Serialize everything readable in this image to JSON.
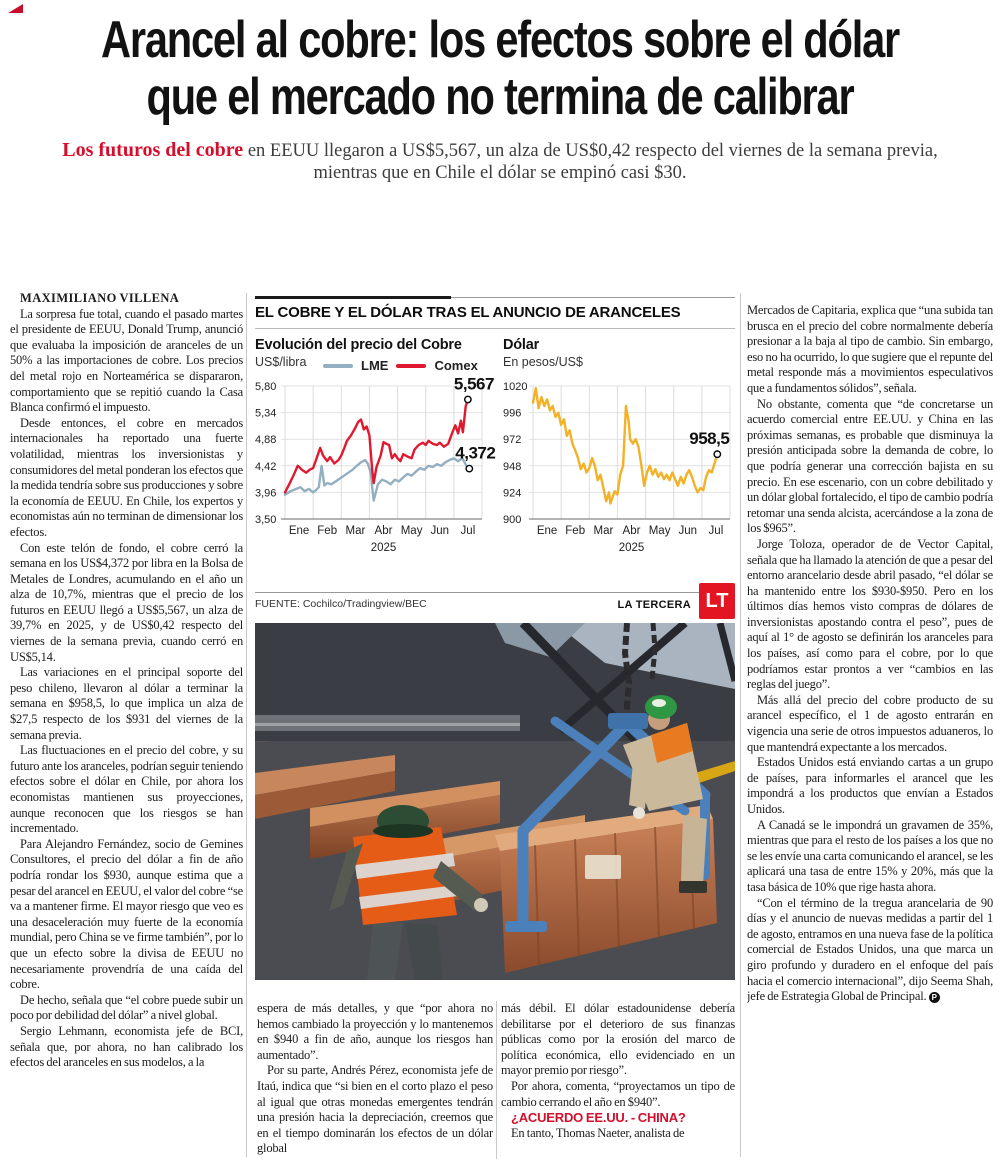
{
  "article": {
    "headline_line1": "Arancel al cobre: los efectos sobre el dólar",
    "headline_line2": "que el mercado no termina de calibrar",
    "deck_lead": "Los futuros del cobre",
    "deck_rest": " en EEUU llegaron a US$5,567, un alza de US$0,42 respecto del viernes de la semana previa, mientras que en Chile el dólar se empinó casi $30.",
    "byline": "MAXIMILIANO VILLENA",
    "left_column": {
      "paragraphs": [
        "La sorpresa fue total, cuando el pasado martes el presidente de EEUU, Donald Trump, anunció que evaluaba la imposición de aranceles de un 50% a las importaciones de cobre. Los precios del metal rojo en Norteamérica se dispararon, comportamiento que se repitió cuando la Casa Blanca confirmó el impuesto.",
        "Desde entonces, el cobre en mercados internacionales ha reportado una fuerte volatilidad, mientras los inversionistas y consumidores del metal ponderan los efectos que la medida tendría sobre sus producciones y sobre la economía de EEUU. En Chile, los expertos y economistas aún no terminan de dimensionar los efectos.",
        "Con este telón de fondo, el cobre cerró la semana en los US$4,372 por libra en la Bolsa de Metales de Londres, acumulando en el año un alza de 10,7%, mientras que el precio de los futuros en EEUU llegó a US$5,567, un alza de 39,7% en 2025, y de US$0,42 respecto del viernes de la semana previa, cuando cerró en US$5,14.",
        "Las variaciones en el principal soporte del peso chileno, llevaron al dólar a terminar la semana en $958,5, lo que implica un alza de $27,5 respecto de los $931 del viernes de la semana previa.",
        "Las fluctuaciones en el precio del cobre, y su futuro ante los aranceles, podrían seguir teniendo efectos sobre el dólar en Chile, por ahora los economistas mantienen sus proyecciones, aunque reconocen que los riesgos se han incrementado.",
        "Para Alejandro Fernández, socio de Gemines Consultores, el precio del dólar a fin de año podría rondar los $930, aunque estima que a pesar del arancel en EEUU, el valor del cobre “se va a mantener firme. El mayor riesgo que veo es una desaceleración muy fuerte de la economía mundial, pero China se ve firme también”, por lo que un efecto sobre la divisa de EEUU no necesariamente provendría de una caída del cobre.",
        "De hecho, señala que “el cobre puede subir un poco por debilidad del dólar” a nivel global.",
        "Sergio Lehmann, economista jefe de BCI, señala que, por ahora, no han calibrado los efectos del aranceles en sus modelos, a la"
      ]
    },
    "mid_column_1": {
      "paragraphs": [
        "espera de más detalles, y que “por ahora no hemos cambiado la proyección y lo mantenemos en $940 a fin de año, aunque los riesgos han aumentado”.",
        "Por su parte, Andrés Pérez, economista jefe de Itaú, indica que “si bien en el corto plazo el peso al igual que otras monedas emergentes tendrán una presión hacia la depreciación, creemos que en el tiempo dominarán los efectos de un dólar global"
      ]
    },
    "mid_column_2": {
      "paragraphs": [
        "más débil. El dólar estadounidense debería debilitarse por el deterioro de sus finanzas públicas como por la erosión del marco de política económica, ello evidenciado en un mayor premio por riesgo”.",
        "Por ahora, comenta, “proyectamos un tipo de cambio cerrando el año en $940”."
      ],
      "subhead": "¿ACUERDO EE.UU. - CHINA?",
      "paragraph_after_subhead": "En tanto, Thomas Naeter, analista de"
    },
    "right_column": {
      "paragraphs": [
        "Mercados de Capitaria, explica que “una subida tan brusca en el precio del cobre normalmente debería presionar a la baja al tipo de cambio. Sin embargo, eso no ha ocurrido, lo que sugiere que el repunte del metal responde más a movimientos especulativos que a fundamentos sólidos”, señala.",
        "No obstante, comenta que “de concretarse un acuerdo comercial entre EE.UU. y China en las próximas semanas, es probable que disminuya la presión anticipada sobre la demanda de cobre, lo que podría generar una corrección bajista en su precio. En ese escenario, con un cobre debilitado y un dólar global fortalecido, el tipo de cambio podría retomar una senda alcista, acercándose a la zona de los $965”.",
        "Jorge Toloza, operador de de Vector Capital, señala que ha llamado la atención de que a pesar del entorno arancelario desde abril pasado, “el dólar se ha mantenido entre los $930-$950. Pero en los últimos días hemos visto compras de dólares de inversionistas apostando contra el peso”, pues de aquí al 1° de agosto se definirán los aranceles para los países, así como para el cobre, por lo que podríamos estar prontos a ver “cambios en las reglas del juego”.",
        "Más allá del precio del cobre producto de su arancel específico, el 1 de agosto entrarán en vigencia una serie de otros impuestos aduaneros, lo que mantendrá expectante a los mercados.",
        "Estados Unidos está enviando cartas a un grupo de países, para informarles el arancel que les impondrá a los productos que envían a Estados Unidos.",
        "A Canadá se le impondrá un gravamen de 35%, mientras que para el resto de los países a los que no se les envíe una carta comunicando el arancel, se les aplicará una tasa de entre 15% y 20%, más que la tasa básica de 10% que rige hasta ahora.",
        "“Con el término de la tregua arancelaria de 90 días y el anuncio de nuevas medidas a partir del 1 de agosto, entramos en una nueva fase de la política comercial de Estados Unidos, una que marca un giro profundo y duradero en el enfoque del país hacia el comercio internacional”, dijo Seema Shah, jefe de Estrategia Global de Principal."
      ],
      "end_mark": "P"
    }
  },
  "infographic": {
    "kicker": "EL COBRE Y EL DÓLAR TRAS EL ANUNCIO DE ARANCELES",
    "source": "FUENTE: Cochilco/Tradingview/BEC",
    "credit": "LA TERCERA",
    "logo_text": "LT"
  },
  "colors": {
    "accent_red": "#d40f2c",
    "lt_logo_red": "#e31523",
    "comex_line": "#e0192e",
    "lme_line": "#93afc0",
    "dollar_line": "#f2b127"
  },
  "chart_data": [
    {
      "type": "line",
      "title": "Evolución del precio del Cobre",
      "ylabel": "US$/libra",
      "categories": [
        "Ene",
        "Feb",
        "Mar",
        "Abr",
        "May",
        "Jun",
        "Jul"
      ],
      "year_label": "2025",
      "ylim": [
        3.5,
        5.8
      ],
      "yticks": [
        {
          "v": 5.8,
          "label": "5,80"
        },
        {
          "v": 5.34,
          "label": "5,34"
        },
        {
          "v": 4.88,
          "label": "4,88"
        },
        {
          "v": 4.42,
          "label": "4,42"
        },
        {
          "v": 3.96,
          "label": "3,96"
        },
        {
          "v": 3.5,
          "label": "3,50"
        }
      ],
      "grid": true,
      "legend_position": "top",
      "end_label_side": "right",
      "series": [
        {
          "name": "LME",
          "color": "#93afc0",
          "end_label": "4,372",
          "points": [
            [
              0,
              3.92
            ],
            [
              0.2,
              3.98
            ],
            [
              0.4,
              4.02
            ],
            [
              0.55,
              4.05
            ],
            [
              0.7,
              3.98
            ],
            [
              0.85,
              4.02
            ],
            [
              1.0,
              3.96
            ],
            [
              1.1,
              4.0
            ],
            [
              1.2,
              4.05
            ],
            [
              1.3,
              4.42
            ],
            [
              1.4,
              4.08
            ],
            [
              1.5,
              4.12
            ],
            [
              1.65,
              4.1
            ],
            [
              1.8,
              4.15
            ],
            [
              1.95,
              4.2
            ],
            [
              2.1,
              4.25
            ],
            [
              2.25,
              4.3
            ],
            [
              2.4,
              4.35
            ],
            [
              2.55,
              4.42
            ],
            [
              2.7,
              4.48
            ],
            [
              2.85,
              4.52
            ],
            [
              2.95,
              4.45
            ],
            [
              3.05,
              4.3
            ],
            [
              3.1,
              4.05
            ],
            [
              3.15,
              3.82
            ],
            [
              3.3,
              4.1
            ],
            [
              3.45,
              4.18
            ],
            [
              3.6,
              4.15
            ],
            [
              3.75,
              4.1
            ],
            [
              3.9,
              4.18
            ],
            [
              4.05,
              4.15
            ],
            [
              4.2,
              4.22
            ],
            [
              4.35,
              4.28
            ],
            [
              4.5,
              4.25
            ],
            [
              4.65,
              4.32
            ],
            [
              4.8,
              4.38
            ],
            [
              4.95,
              4.35
            ],
            [
              5.1,
              4.42
            ],
            [
              5.25,
              4.4
            ],
            [
              5.4,
              4.45
            ],
            [
              5.55,
              4.42
            ],
            [
              5.7,
              4.48
            ],
            [
              5.85,
              4.52
            ],
            [
              6.0,
              4.55
            ],
            [
              6.15,
              4.5
            ],
            [
              6.3,
              4.55
            ],
            [
              6.45,
              4.42
            ],
            [
              6.55,
              4.372
            ]
          ]
        },
        {
          "name": "Comex",
          "color": "#e0192e",
          "end_label": "5,567",
          "points": [
            [
              0,
              3.96
            ],
            [
              0.15,
              4.1
            ],
            [
              0.3,
              4.25
            ],
            [
              0.45,
              4.42
            ],
            [
              0.6,
              4.35
            ],
            [
              0.75,
              4.3
            ],
            [
              0.9,
              4.36
            ],
            [
              1.0,
              4.38
            ],
            [
              1.1,
              4.52
            ],
            [
              1.25,
              4.73
            ],
            [
              1.35,
              4.6
            ],
            [
              1.5,
              4.5
            ],
            [
              1.6,
              4.57
            ],
            [
              1.75,
              4.46
            ],
            [
              1.9,
              4.52
            ],
            [
              2.0,
              4.6
            ],
            [
              2.1,
              4.72
            ],
            [
              2.2,
              4.85
            ],
            [
              2.35,
              4.95
            ],
            [
              2.5,
              5.08
            ],
            [
              2.6,
              5.18
            ],
            [
              2.7,
              5.22
            ],
            [
              2.8,
              5.05
            ],
            [
              2.9,
              5.1
            ],
            [
              3.0,
              4.95
            ],
            [
              3.1,
              4.35
            ],
            [
              3.15,
              4.12
            ],
            [
              3.25,
              4.4
            ],
            [
              3.4,
              4.6
            ],
            [
              3.5,
              4.83
            ],
            [
              3.6,
              4.8
            ],
            [
              3.7,
              4.78
            ],
            [
              3.8,
              4.55
            ],
            [
              3.9,
              4.62
            ],
            [
              4.0,
              4.55
            ],
            [
              4.1,
              4.5
            ],
            [
              4.2,
              4.62
            ],
            [
              4.35,
              4.58
            ],
            [
              4.5,
              4.55
            ],
            [
              4.6,
              4.7
            ],
            [
              4.75,
              4.78
            ],
            [
              4.9,
              4.82
            ],
            [
              5.0,
              4.78
            ],
            [
              5.1,
              4.85
            ],
            [
              5.25,
              4.8
            ],
            [
              5.4,
              4.78
            ],
            [
              5.5,
              4.82
            ],
            [
              5.65,
              4.75
            ],
            [
              5.8,
              4.8
            ],
            [
              5.95,
              5.0
            ],
            [
              6.05,
              5.12
            ],
            [
              6.15,
              4.98
            ],
            [
              6.25,
              5.2
            ],
            [
              6.32,
              5.0
            ],
            [
              6.42,
              5.45
            ],
            [
              6.5,
              5.567
            ]
          ]
        }
      ]
    },
    {
      "type": "line",
      "title": "Dólar",
      "ylabel": "En pesos/US$",
      "categories": [
        "Ene",
        "Feb",
        "Mar",
        "Abr",
        "May",
        "Jun",
        "Jul"
      ],
      "year_label": "2025",
      "ylim": [
        900,
        1020
      ],
      "yticks": [
        {
          "v": 1020,
          "label": "1020"
        },
        {
          "v": 996,
          "label": "996"
        },
        {
          "v": 972,
          "label": "972"
        },
        {
          "v": 948,
          "label": "948"
        },
        {
          "v": 924,
          "label": "924"
        },
        {
          "v": 900,
          "label": "900"
        }
      ],
      "grid": true,
      "legend_position": "none",
      "end_label_side": "left",
      "series": [
        {
          "name": "Dólar observado",
          "color": "#f2b127",
          "end_label": "958,5",
          "points": [
            [
              0,
              1005
            ],
            [
              0.1,
              1018
            ],
            [
              0.2,
              1000
            ],
            [
              0.3,
              1010
            ],
            [
              0.4,
              1002
            ],
            [
              0.5,
              1008
            ],
            [
              0.6,
              998
            ],
            [
              0.7,
              1002
            ],
            [
              0.8,
              992
            ],
            [
              0.9,
              996
            ],
            [
              1.0,
              985
            ],
            [
              1.1,
              990
            ],
            [
              1.2,
              975
            ],
            [
              1.3,
              980
            ],
            [
              1.4,
              968
            ],
            [
              1.5,
              962
            ],
            [
              1.6,
              955
            ],
            [
              1.7,
              945
            ],
            [
              1.8,
              950
            ],
            [
              1.9,
              942
            ],
            [
              2.0,
              946
            ],
            [
              2.1,
              955
            ],
            [
              2.2,
              948
            ],
            [
              2.3,
              935
            ],
            [
              2.4,
              940
            ],
            [
              2.5,
              928
            ],
            [
              2.6,
              916
            ],
            [
              2.7,
              924
            ],
            [
              2.75,
              914
            ],
            [
              2.9,
              925
            ],
            [
              3.0,
              922
            ],
            [
              3.1,
              940
            ],
            [
              3.2,
              948
            ],
            [
              3.3,
              1002
            ],
            [
              3.4,
              988
            ],
            [
              3.45,
              972
            ],
            [
              3.55,
              968
            ],
            [
              3.65,
              972
            ],
            [
              3.75,
              965
            ],
            [
              3.85,
              948
            ],
            [
              3.95,
              930
            ],
            [
              4.05,
              942
            ],
            [
              4.15,
              948
            ],
            [
              4.25,
              940
            ],
            [
              4.35,
              945
            ],
            [
              4.45,
              938
            ],
            [
              4.55,
              942
            ],
            [
              4.65,
              936
            ],
            [
              4.75,
              940
            ],
            [
              4.85,
              935
            ],
            [
              4.95,
              942
            ],
            [
              5.05,
              936
            ],
            [
              5.15,
              930
            ],
            [
              5.25,
              938
            ],
            [
              5.35,
              932
            ],
            [
              5.45,
              940
            ],
            [
              5.55,
              944
            ],
            [
              5.65,
              938
            ],
            [
              5.75,
              930
            ],
            [
              5.85,
              924
            ],
            [
              5.95,
              928
            ],
            [
              6.05,
              926
            ],
            [
              6.15,
              938
            ],
            [
              6.25,
              944
            ],
            [
              6.35,
              942
            ],
            [
              6.45,
              950
            ],
            [
              6.55,
              958.5
            ]
          ]
        }
      ]
    }
  ]
}
